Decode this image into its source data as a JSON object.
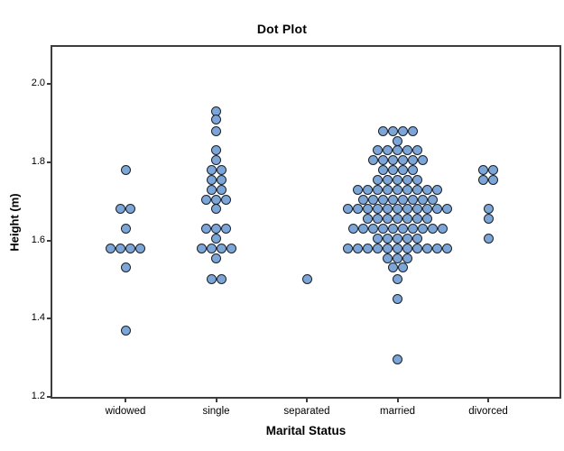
{
  "colors": {
    "dot_fill": "#7CA5D8",
    "dot_stroke": "#1B2129",
    "frame": "#3D3D3D",
    "text": "#000000",
    "background": "#FFFFFF"
  },
  "chart_data": {
    "type": "dot_plot",
    "title": "Dot Plot",
    "xlabel": "Marital Status",
    "ylabel": "Height (m)",
    "categories": [
      "widowed",
      "single",
      "separated",
      "married",
      "divorced"
    ],
    "y_ticks": [
      "2.0",
      "1.8",
      "1.6",
      "1.4",
      "1.2"
    ],
    "ylim": [
      1.2,
      2.095
    ],
    "grid": false,
    "legend": "none",
    "series": [
      {
        "category": "widowed",
        "bins": [
          {
            "value": 1.78,
            "count": 1
          },
          {
            "value": 1.68,
            "count": 2
          },
          {
            "value": 1.63,
            "count": 1
          },
          {
            "value": 1.58,
            "count": 4
          },
          {
            "value": 1.53,
            "count": 1
          },
          {
            "value": 1.37,
            "count": 1
          }
        ]
      },
      {
        "category": "single",
        "bins": [
          {
            "value": 1.93,
            "count": 1
          },
          {
            "value": 1.91,
            "count": 1
          },
          {
            "value": 1.88,
            "count": 1
          },
          {
            "value": 1.83,
            "count": 1
          },
          {
            "value": 1.805,
            "count": 1
          },
          {
            "value": 1.78,
            "count": 2
          },
          {
            "value": 1.755,
            "count": 2
          },
          {
            "value": 1.73,
            "count": 2
          },
          {
            "value": 1.705,
            "count": 3
          },
          {
            "value": 1.68,
            "count": 1
          },
          {
            "value": 1.63,
            "count": 3
          },
          {
            "value": 1.605,
            "count": 1
          },
          {
            "value": 1.58,
            "count": 4
          },
          {
            "value": 1.555,
            "count": 1
          },
          {
            "value": 1.5,
            "count": 2
          }
        ]
      },
      {
        "category": "separated",
        "bins": [
          {
            "value": 1.5,
            "count": 1
          }
        ]
      },
      {
        "category": "married",
        "bins": [
          {
            "value": 1.88,
            "count": 4
          },
          {
            "value": 1.855,
            "count": 1
          },
          {
            "value": 1.83,
            "count": 5
          },
          {
            "value": 1.805,
            "count": 6
          },
          {
            "value": 1.78,
            "count": 4
          },
          {
            "value": 1.755,
            "count": 5
          },
          {
            "value": 1.73,
            "count": 9
          },
          {
            "value": 1.705,
            "count": 8
          },
          {
            "value": 1.68,
            "count": 11
          },
          {
            "value": 1.655,
            "count": 7
          },
          {
            "value": 1.63,
            "count": 10
          },
          {
            "value": 1.605,
            "count": 5
          },
          {
            "value": 1.58,
            "count": 11
          },
          {
            "value": 1.555,
            "count": 3
          },
          {
            "value": 1.53,
            "count": 2
          },
          {
            "value": 1.5,
            "count": 1
          },
          {
            "value": 1.45,
            "count": 1
          },
          {
            "value": 1.295,
            "count": 1
          }
        ]
      },
      {
        "category": "divorced",
        "bins": [
          {
            "value": 1.78,
            "count": 2
          },
          {
            "value": 1.755,
            "count": 2
          },
          {
            "value": 1.68,
            "count": 1
          },
          {
            "value": 1.655,
            "count": 1
          },
          {
            "value": 1.605,
            "count": 1
          }
        ]
      }
    ]
  }
}
